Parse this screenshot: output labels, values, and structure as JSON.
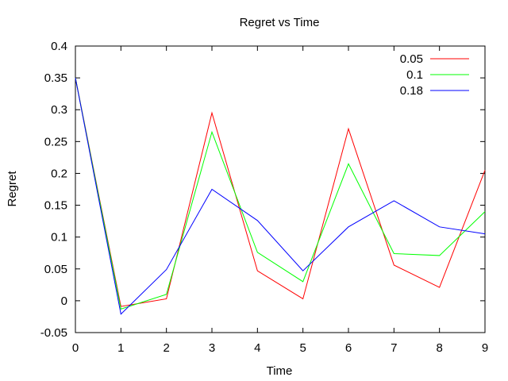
{
  "chart_data": {
    "type": "line",
    "title": "Regret vs Time",
    "xlabel": "Time",
    "ylabel": "Regret",
    "xlim": [
      0,
      9
    ],
    "ylim": [
      -0.05,
      0.4
    ],
    "xticks": [
      "0",
      "1",
      "2",
      "3",
      "4",
      "5",
      "6",
      "7",
      "8",
      "9"
    ],
    "yticks": [
      "-0.05",
      "0",
      "0.05",
      "0.1",
      "0.15",
      "0.2",
      "0.25",
      "0.3",
      "0.35",
      "0.4"
    ],
    "legend_position": "top-right",
    "grid": false,
    "x": [
      0,
      1,
      2,
      3,
      4,
      5,
      6,
      7,
      8,
      9
    ],
    "series": [
      {
        "name": "0.05",
        "color": "#ff0000",
        "values": [
          0.35,
          -0.009,
          0.003,
          0.295,
          0.047,
          0.003,
          0.27,
          0.056,
          0.021,
          0.205
        ]
      },
      {
        "name": "0.1",
        "color": "#00ff00",
        "values": [
          0.35,
          -0.013,
          0.01,
          0.265,
          0.076,
          0.03,
          0.215,
          0.074,
          0.071,
          0.14
        ]
      },
      {
        "name": "0.18",
        "color": "#0000ff",
        "values": [
          0.35,
          -0.021,
          0.049,
          0.175,
          0.126,
          0.047,
          0.116,
          0.157,
          0.116,
          0.105
        ]
      }
    ]
  }
}
